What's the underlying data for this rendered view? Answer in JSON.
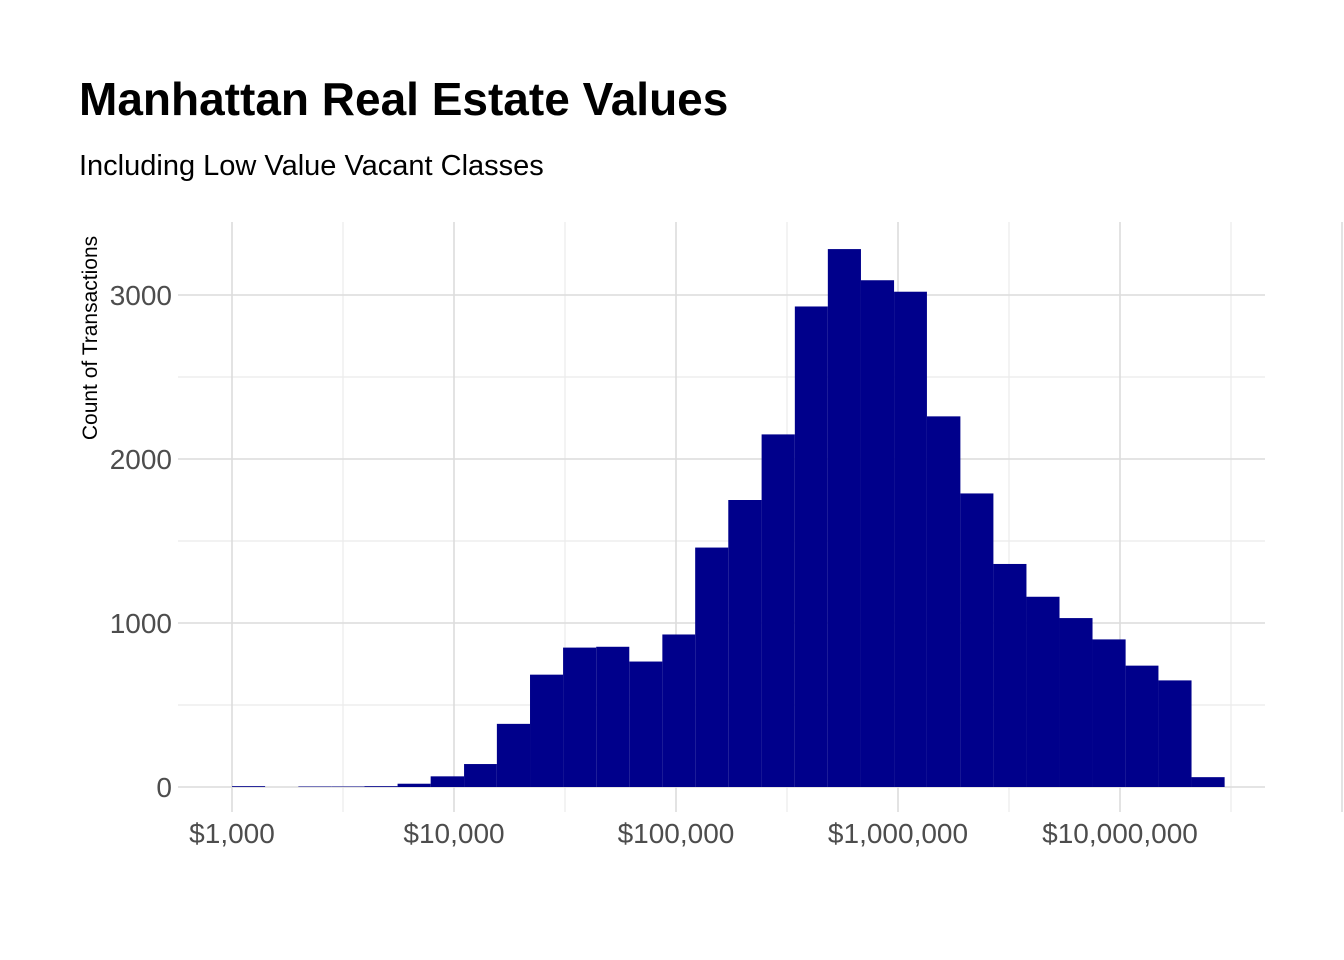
{
  "title": "Manhattan Real Estate Values",
  "subtitle": "Including Low Value Vacant Classes",
  "chart_data": {
    "type": "bar",
    "title": "Manhattan Real Estate Values",
    "subtitle": "Including Low Value Vacant Classes",
    "xlabel": "",
    "ylabel": "Count of Transactions",
    "x_scale": "log10",
    "xlim": [
      1000,
      30000000
    ],
    "ylim": [
      0,
      3400
    ],
    "bar_color": "#00008B",
    "grid": true,
    "legend": "none",
    "x_ticks": [
      {
        "value": 1000,
        "label": "$1,000"
      },
      {
        "value": 10000,
        "label": "$10,000"
      },
      {
        "value": 100000,
        "label": "$100,000"
      },
      {
        "value": 1000000,
        "label": "$1,000,000"
      },
      {
        "value": 10000000,
        "label": "$10,000,000"
      }
    ],
    "y_ticks": [
      {
        "value": 0,
        "label": "0"
      },
      {
        "value": 1000,
        "label": "1000"
      },
      {
        "value": 2000,
        "label": "2000"
      },
      {
        "value": 3000,
        "label": "3000"
      }
    ],
    "bins": [
      {
        "x0": 1000,
        "x1": 1410,
        "count": 5
      },
      {
        "x0": 1410,
        "x1": 1990,
        "count": 0
      },
      {
        "x0": 1990,
        "x1": 2800,
        "count": 3
      },
      {
        "x0": 2800,
        "x1": 3950,
        "count": 3
      },
      {
        "x0": 3950,
        "x1": 5570,
        "count": 5
      },
      {
        "x0": 5570,
        "x1": 7850,
        "count": 20
      },
      {
        "x0": 7850,
        "x1": 11100,
        "count": 65
      },
      {
        "x0": 11100,
        "x1": 15600,
        "count": 140
      },
      {
        "x0": 15600,
        "x1": 22000,
        "count": 385
      },
      {
        "x0": 22000,
        "x1": 31000,
        "count": 685
      },
      {
        "x0": 31000,
        "x1": 43700,
        "count": 850
      },
      {
        "x0": 43700,
        "x1": 61600,
        "count": 855
      },
      {
        "x0": 61600,
        "x1": 86800,
        "count": 765
      },
      {
        "x0": 86800,
        "x1": 122000,
        "count": 930
      },
      {
        "x0": 122000,
        "x1": 172000,
        "count": 1460
      },
      {
        "x0": 172000,
        "x1": 243000,
        "count": 1750
      },
      {
        "x0": 243000,
        "x1": 343000,
        "count": 2150
      },
      {
        "x0": 343000,
        "x1": 483000,
        "count": 2930
      },
      {
        "x0": 483000,
        "x1": 681000,
        "count": 3280
      },
      {
        "x0": 681000,
        "x1": 960000,
        "count": 3090
      },
      {
        "x0": 960000,
        "x1": 1350000,
        "count": 3020
      },
      {
        "x0": 1350000,
        "x1": 1910000,
        "count": 2260
      },
      {
        "x0": 1910000,
        "x1": 2690000,
        "count": 1790
      },
      {
        "x0": 2690000,
        "x1": 3790000,
        "count": 1360
      },
      {
        "x0": 3790000,
        "x1": 5340000,
        "count": 1160
      },
      {
        "x0": 5340000,
        "x1": 7520000,
        "count": 1030
      },
      {
        "x0": 7520000,
        "x1": 10600000,
        "count": 900
      },
      {
        "x0": 10600000,
        "x1": 14900000,
        "count": 740
      },
      {
        "x0": 14900000,
        "x1": 21000000,
        "count": 650
      },
      {
        "x0": 21000000,
        "x1": 29600000,
        "count": 60
      }
    ]
  }
}
